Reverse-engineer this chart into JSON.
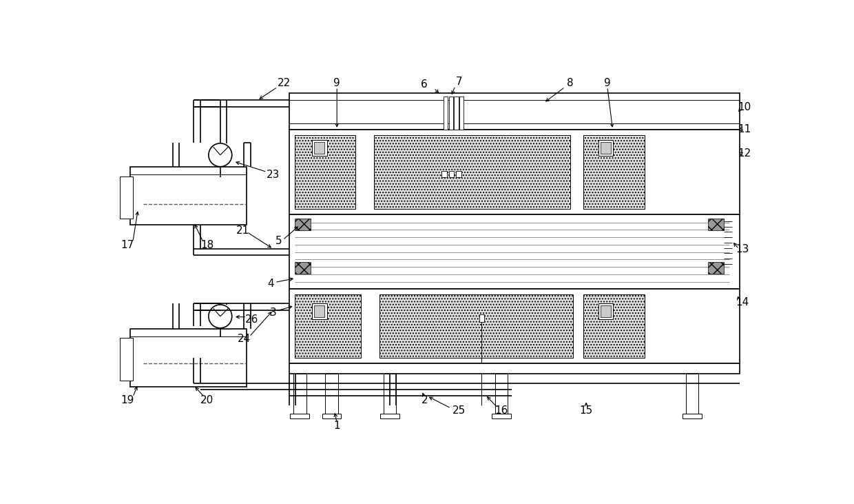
{
  "bg_color": "#ffffff",
  "figsize": [
    12.4,
    7.31
  ],
  "dpi": 100,
  "lw_main": 1.2,
  "lw_thin": 0.7,
  "font_size": 11
}
